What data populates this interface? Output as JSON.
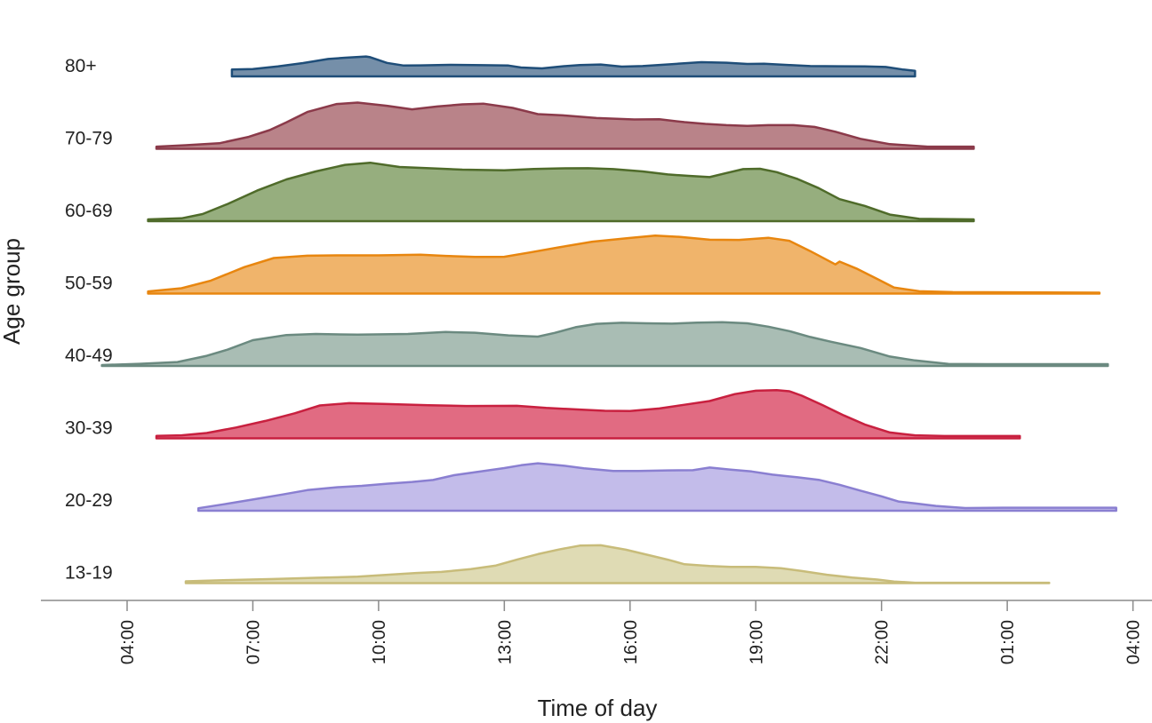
{
  "chart_data": {
    "type": "ridgeline",
    "title": "",
    "xlabel": "Time of day",
    "ylabel": "Age group",
    "x_ticks": [
      "04:00",
      "07:00",
      "10:00",
      "13:00",
      "16:00",
      "19:00",
      "22:00",
      "01:00",
      "04:00"
    ],
    "x_tick_hours": [
      4,
      7,
      10,
      13,
      16,
      19,
      22,
      25,
      28
    ],
    "x_range_hours": [
      3.3,
      29.0
    ],
    "series": [
      {
        "name": "80+",
        "color": "#1f4e79",
        "fill": "#6b86a3",
        "x": [
          6.5,
          6.5,
          7.0,
          7.6,
          8.2,
          8.8,
          9.2,
          9.7,
          9.8,
          10.2,
          10.6,
          11.0,
          11.7,
          12.5,
          13.1,
          13.4,
          13.9,
          14.4,
          14.8,
          15.3,
          15.8,
          16.3,
          17.0,
          17.7,
          18.3,
          18.8,
          19.2,
          19.8,
          20.3,
          21.0,
          21.6,
          22.1,
          22.5,
          22.8,
          22.8
        ],
        "y": [
          0,
          0.39,
          0.41,
          0.56,
          0.75,
          0.98,
          1.05,
          1.12,
          1.08,
          0.76,
          0.61,
          0.62,
          0.65,
          0.63,
          0.61,
          0.5,
          0.45,
          0.57,
          0.64,
          0.67,
          0.55,
          0.58,
          0.69,
          0.8,
          0.77,
          0.7,
          0.71,
          0.64,
          0.58,
          0.57,
          0.56,
          0.53,
          0.39,
          0.31,
          0
        ]
      },
      {
        "name": "70-79",
        "color": "#8b3a4a",
        "fill": "#b47a80",
        "x": [
          4.7,
          4.7,
          5.4,
          6.2,
          6.9,
          7.4,
          7.8,
          8.3,
          9.0,
          9.5,
          10.2,
          10.8,
          11.4,
          12.0,
          12.5,
          13.2,
          13.8,
          14.4,
          15.2,
          16.1,
          16.7,
          17.3,
          17.8,
          18.3,
          18.8,
          19.3,
          19.9,
          20.4,
          20.9,
          21.5,
          22.2,
          23.1,
          24.2,
          24.2
        ],
        "y": [
          0,
          0.12,
          0.2,
          0.31,
          0.67,
          1.05,
          1.49,
          2.07,
          2.52,
          2.6,
          2.42,
          2.22,
          2.38,
          2.5,
          2.54,
          2.3,
          1.95,
          1.88,
          1.73,
          1.65,
          1.66,
          1.5,
          1.4,
          1.33,
          1.29,
          1.33,
          1.33,
          1.23,
          0.96,
          0.56,
          0.26,
          0.12,
          0.12,
          0
        ]
      },
      {
        "name": "60-69",
        "color": "#4f6b2a",
        "fill": "#8ea874",
        "x": [
          4.5,
          4.5,
          5.3,
          5.8,
          6.4,
          7.1,
          7.8,
          8.5,
          9.2,
          9.8,
          10.5,
          11.2,
          12.0,
          13.0,
          13.7,
          14.3,
          15.0,
          15.6,
          16.3,
          16.9,
          17.4,
          17.9,
          18.3,
          18.7,
          19.1,
          19.5,
          20.0,
          20.5,
          21.0,
          21.6,
          22.2,
          22.9,
          24.2,
          24.2
        ],
        "y": [
          0,
          0.1,
          0.16,
          0.4,
          0.97,
          1.72,
          2.35,
          2.8,
          3.17,
          3.29,
          3.05,
          2.98,
          2.9,
          2.86,
          2.94,
          2.97,
          2.98,
          2.93,
          2.8,
          2.63,
          2.55,
          2.48,
          2.71,
          2.93,
          2.95,
          2.76,
          2.37,
          1.86,
          1.24,
          0.86,
          0.37,
          0.13,
          0.1,
          0
        ]
      },
      {
        "name": "50-59",
        "color": "#e8860f",
        "fill": "#efae60",
        "x": [
          4.5,
          4.5,
          5.3,
          6.0,
          6.8,
          7.5,
          8.3,
          9.0,
          10.0,
          11.0,
          11.6,
          12.3,
          13.0,
          13.6,
          14.3,
          15.1,
          16.0,
          16.6,
          17.2,
          17.9,
          18.6,
          19.3,
          19.8,
          20.3,
          20.9,
          21.0,
          21.4,
          21.9,
          22.3,
          22.9,
          23.7,
          27.2,
          27.2
        ],
        "y": [
          0,
          0.12,
          0.3,
          0.73,
          1.49,
          2.0,
          2.13,
          2.15,
          2.15,
          2.19,
          2.12,
          2.06,
          2.07,
          2.31,
          2.6,
          2.92,
          3.13,
          3.26,
          3.19,
          3.03,
          3.02,
          3.14,
          2.97,
          2.39,
          1.64,
          1.8,
          1.41,
          0.82,
          0.34,
          0.13,
          0.08,
          0.05,
          0
        ]
      },
      {
        "name": "40-49",
        "color": "#6b8a80",
        "fill": "#a2b8ae",
        "x": [
          3.4,
          3.4,
          4.3,
          5.2,
          5.9,
          6.4,
          7.0,
          7.8,
          8.5,
          9.5,
          10.7,
          11.6,
          12.3,
          13.1,
          13.8,
          14.2,
          14.7,
          15.2,
          15.8,
          16.4,
          17.0,
          17.6,
          18.2,
          18.8,
          19.3,
          19.8,
          20.3,
          20.8,
          21.5,
          22.2,
          22.8,
          23.6,
          24.5,
          27.4,
          27.4
        ],
        "y": [
          0,
          0.05,
          0.12,
          0.22,
          0.57,
          0.92,
          1.45,
          1.74,
          1.8,
          1.76,
          1.8,
          1.91,
          1.87,
          1.72,
          1.65,
          1.86,
          2.18,
          2.37,
          2.43,
          2.4,
          2.38,
          2.44,
          2.46,
          2.4,
          2.21,
          1.96,
          1.63,
          1.36,
          1.01,
          0.53,
          0.31,
          0.11,
          0.1,
          0.1,
          0
        ]
      },
      {
        "name": "30-39",
        "color": "#c8203f",
        "fill": "#df6078",
        "x": [
          4.7,
          4.7,
          5.3,
          5.9,
          6.6,
          7.3,
          8.0,
          8.6,
          9.3,
          10.1,
          11.2,
          12.1,
          13.3,
          14.0,
          14.8,
          15.4,
          16.0,
          16.7,
          17.3,
          17.9,
          18.5,
          19.0,
          19.5,
          19.8,
          20.1,
          20.6,
          21.1,
          21.6,
          22.2,
          22.8,
          23.5,
          25.3,
          25.3
        ],
        "y": [
          0,
          0.14,
          0.17,
          0.3,
          0.61,
          0.98,
          1.41,
          1.85,
          1.98,
          1.94,
          1.86,
          1.82,
          1.83,
          1.71,
          1.62,
          1.55,
          1.54,
          1.68,
          1.89,
          2.1,
          2.49,
          2.68,
          2.71,
          2.65,
          2.4,
          1.86,
          1.29,
          0.78,
          0.33,
          0.17,
          0.13,
          0.13,
          0
        ]
      },
      {
        "name": "20-29",
        "color": "#8a7fd1",
        "fill": "#beb7e8",
        "x": [
          5.7,
          5.7,
          6.3,
          7.0,
          7.7,
          8.3,
          9.0,
          9.6,
          10.2,
          10.8,
          11.3,
          11.8,
          12.4,
          13.0,
          13.4,
          13.8,
          14.4,
          14.9,
          15.6,
          16.2,
          16.9,
          17.5,
          17.9,
          18.4,
          18.9,
          19.4,
          20.0,
          20.5,
          21.0,
          21.5,
          22.0,
          22.4,
          22.8,
          23.3,
          24.0,
          24.9,
          27.6,
          27.6
        ],
        "y": [
          0,
          0.14,
          0.36,
          0.63,
          0.91,
          1.16,
          1.32,
          1.4,
          1.52,
          1.62,
          1.73,
          2.0,
          2.2,
          2.4,
          2.56,
          2.67,
          2.54,
          2.39,
          2.24,
          2.24,
          2.27,
          2.28,
          2.43,
          2.31,
          2.21,
          2.03,
          1.88,
          1.74,
          1.46,
          1.13,
          0.81,
          0.52,
          0.41,
          0.27,
          0.15,
          0.17,
          0.17,
          0
        ]
      },
      {
        "name": "13-19",
        "color": "#c8bc7a",
        "fill": "#ddd8ae",
        "x": [
          5.4,
          5.4,
          6.4,
          7.5,
          8.5,
          9.5,
          10.3,
          10.9,
          11.5,
          12.2,
          12.8,
          13.3,
          13.8,
          14.3,
          14.8,
          15.3,
          15.9,
          16.4,
          16.9,
          17.3,
          17.9,
          18.4,
          19.0,
          19.6,
          20.1,
          20.7,
          21.3,
          21.9,
          22.3,
          22.8,
          23.5,
          24.5,
          26.0,
          26.0
        ],
        "y": [
          0,
          0.1,
          0.17,
          0.23,
          0.3,
          0.36,
          0.48,
          0.57,
          0.63,
          0.79,
          0.99,
          1.32,
          1.63,
          1.89,
          2.11,
          2.13,
          1.88,
          1.6,
          1.32,
          1.06,
          0.96,
          0.91,
          0.91,
          0.84,
          0.68,
          0.47,
          0.31,
          0.2,
          0.09,
          0.02,
          0.02,
          0.02,
          0.02,
          0
        ]
      }
    ]
  }
}
